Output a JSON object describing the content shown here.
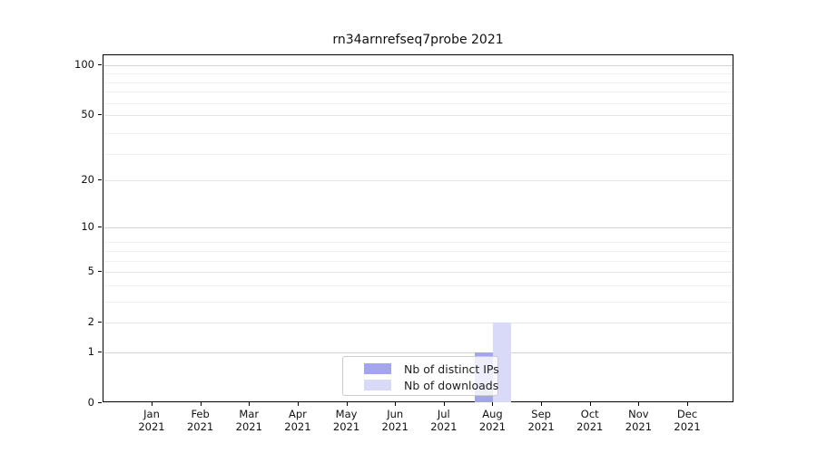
{
  "chart_data": {
    "type": "bar",
    "title": "rn34arnrefseq7probe 2021",
    "categories": [
      "Jan",
      "Feb",
      "Mar",
      "Apr",
      "May",
      "Jun",
      "Jul",
      "Aug",
      "Sep",
      "Oct",
      "Nov",
      "Dec"
    ],
    "category_year": "2021",
    "series": [
      {
        "name": "Nb of distinct IPs",
        "color": "#a4a6ec",
        "values": [
          0,
          0,
          0,
          0,
          0,
          0,
          0,
          1,
          0,
          0,
          0,
          0
        ]
      },
      {
        "name": "Nb of downloads",
        "color": "#d9daf7",
        "values": [
          0,
          0,
          0,
          0,
          0,
          0,
          0,
          2,
          0,
          0,
          0,
          0
        ]
      }
    ],
    "yscale": "log1p",
    "yticks": [
      0,
      1,
      2,
      5,
      10,
      20,
      50,
      100
    ],
    "major_gridline_values": [
      1,
      10,
      100
    ],
    "minor_gridline_values": [
      3,
      4,
      6,
      7,
      8,
      29,
      39,
      59,
      69,
      79,
      89
    ],
    "ylim": [
      0,
      115
    ],
    "grid": true,
    "legend_position": "lower center",
    "colors": {
      "major_grid": "#d4d4d4",
      "minor_grid": "#f0f0f0",
      "tick_grid": "#e6e6e6",
      "axis": "#000000",
      "legend_border": "#cccccc"
    }
  }
}
